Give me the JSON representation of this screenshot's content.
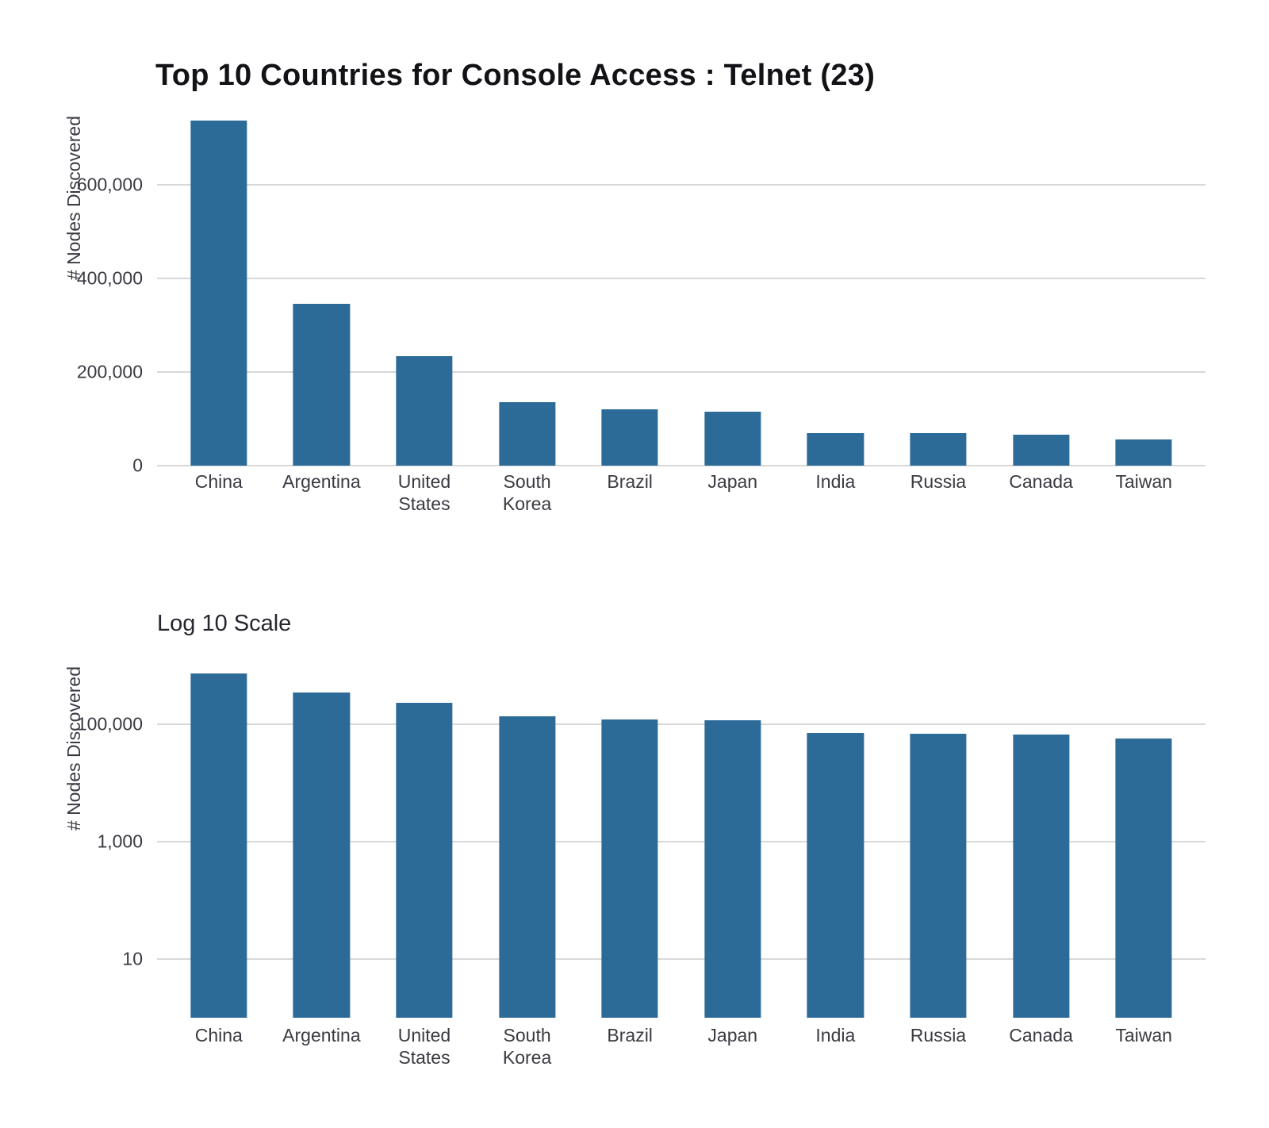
{
  "figure": {
    "title": "Top 10 Countries for Console Access : Telnet (23)",
    "subtitle": "Log 10 Scale"
  },
  "colors": {
    "bar": "#2c6b98",
    "grid": "#d8d8d8",
    "title_text": "#121217",
    "subtitle_text": "#26262e",
    "axis_text": "#3a3a42",
    "background": "#ffffff"
  },
  "chart_data": [
    {
      "type": "bar",
      "title": "Top 10 Countries for Console Access : Telnet (23)",
      "scale": "linear",
      "ylabel": "# Nodes Discovered",
      "xlabel": "",
      "categories": [
        "China",
        "Argentina",
        "United States",
        "South Korea",
        "Brazil",
        "Japan",
        "India",
        "Russia",
        "Canada",
        "Taiwan"
      ],
      "xtick_labels": [
        "China",
        "Argentina",
        "United\nStates",
        "South\nKorea",
        "Brazil",
        "Japan",
        "India",
        "Russia",
        "Canada",
        "Taiwan"
      ],
      "values": [
        737000,
        345000,
        233000,
        135000,
        121000,
        116000,
        70000,
        69000,
        66000,
        56000
      ],
      "ylim": [
        0,
        757000
      ],
      "yticks": [
        {
          "value": 0,
          "label": "0"
        },
        {
          "value": 200000,
          "label": "200,000"
        },
        {
          "value": 400000,
          "label": "400,000"
        },
        {
          "value": 600000,
          "label": "600,000"
        }
      ],
      "grid": true,
      "legend_position": "none"
    },
    {
      "type": "bar",
      "title": "Log 10 Scale",
      "scale": "log10",
      "ylabel": "# Nodes Discovered",
      "xlabel": "",
      "categories": [
        "China",
        "Argentina",
        "United States",
        "South Korea",
        "Brazil",
        "Japan",
        "India",
        "Russia",
        "Canada",
        "Taiwan"
      ],
      "xtick_labels": [
        "China",
        "Argentina",
        "United\nStates",
        "South\nKorea",
        "Brazil",
        "Japan",
        "India",
        "Russia",
        "Canada",
        "Taiwan"
      ],
      "values": [
        737000,
        345000,
        233000,
        135000,
        121000,
        116000,
        70000,
        69000,
        66000,
        56000
      ],
      "log_decades": [
        0,
        6.28
      ],
      "yticks": [
        {
          "value": 10,
          "label": "10"
        },
        {
          "value": 1000,
          "label": "1,000"
        },
        {
          "value": 100000,
          "label": "100,000"
        }
      ],
      "grid": true,
      "legend_position": "none"
    }
  ]
}
